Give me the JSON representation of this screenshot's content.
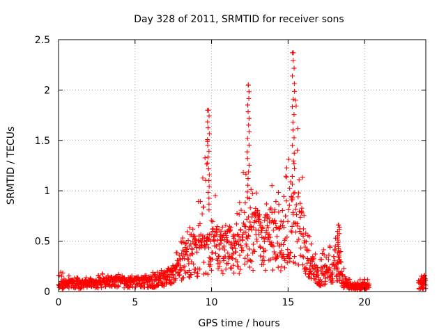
{
  "chart_data": {
    "type": "scatter",
    "title": "Day 328 of 2011, SRMTID for receiver sons",
    "xlabel": "GPS time / hours",
    "ylabel": "SRMTID / TECUs",
    "xlim": [
      0,
      24
    ],
    "ylim": [
      0,
      2.5
    ],
    "xticks": [
      "0",
      "5",
      "10",
      "15",
      "20"
    ],
    "yticks": [
      "0",
      "0.5",
      "1",
      "1.5",
      "2",
      "2.5"
    ],
    "grid": true,
    "marker": "plus",
    "color": "#ff0000",
    "envelope": {
      "hours": [
        0,
        1,
        2,
        3,
        4,
        5,
        6,
        7,
        7.5,
        8,
        8.5,
        9,
        9.5,
        9.8,
        10,
        10.5,
        11,
        11.5,
        12,
        12.3,
        12.5,
        12.8,
        13,
        13.5,
        14,
        14.5,
        15,
        15.3,
        15.5,
        15.8,
        16,
        16.5,
        17,
        17.5,
        18,
        18.3,
        18.6,
        19,
        19.5,
        20,
        20.3
      ],
      "mean": [
        0.08,
        0.08,
        0.08,
        0.1,
        0.1,
        0.1,
        0.1,
        0.15,
        0.18,
        0.3,
        0.4,
        0.38,
        0.4,
        0.45,
        0.5,
        0.45,
        0.45,
        0.45,
        0.5,
        0.6,
        0.6,
        0.55,
        0.6,
        0.55,
        0.5,
        0.45,
        0.55,
        0.7,
        0.75,
        0.65,
        0.5,
        0.25,
        0.15,
        0.2,
        0.22,
        0.3,
        0.08,
        0.06,
        0.05,
        0.05,
        0.06
      ],
      "peak": [
        0.22,
        0.15,
        0.15,
        0.19,
        0.18,
        0.15,
        0.2,
        0.25,
        0.3,
        0.55,
        0.75,
        0.85,
        1.2,
        1.8,
        1.3,
        0.7,
        0.65,
        0.7,
        1.2,
        2.05,
        1.6,
        0.95,
        1.1,
        0.95,
        1.1,
        1.2,
        1.3,
        2.37,
        1.95,
        1.7,
        0.95,
        0.55,
        0.4,
        0.45,
        0.55,
        0.66,
        0.25,
        0.12,
        0.12,
        0.15,
        0.12
      ]
    },
    "late_cluster": {
      "x_range": [
        23.5,
        24
      ],
      "mean": 0.08,
      "peak": 0.2
    },
    "peaks": [
      {
        "x": 9.8,
        "y": 1.8
      },
      {
        "x": 12.4,
        "y": 2.05
      },
      {
        "x": 15.35,
        "y": 2.37
      },
      {
        "x": 18.3,
        "y": 0.66
      }
    ]
  }
}
